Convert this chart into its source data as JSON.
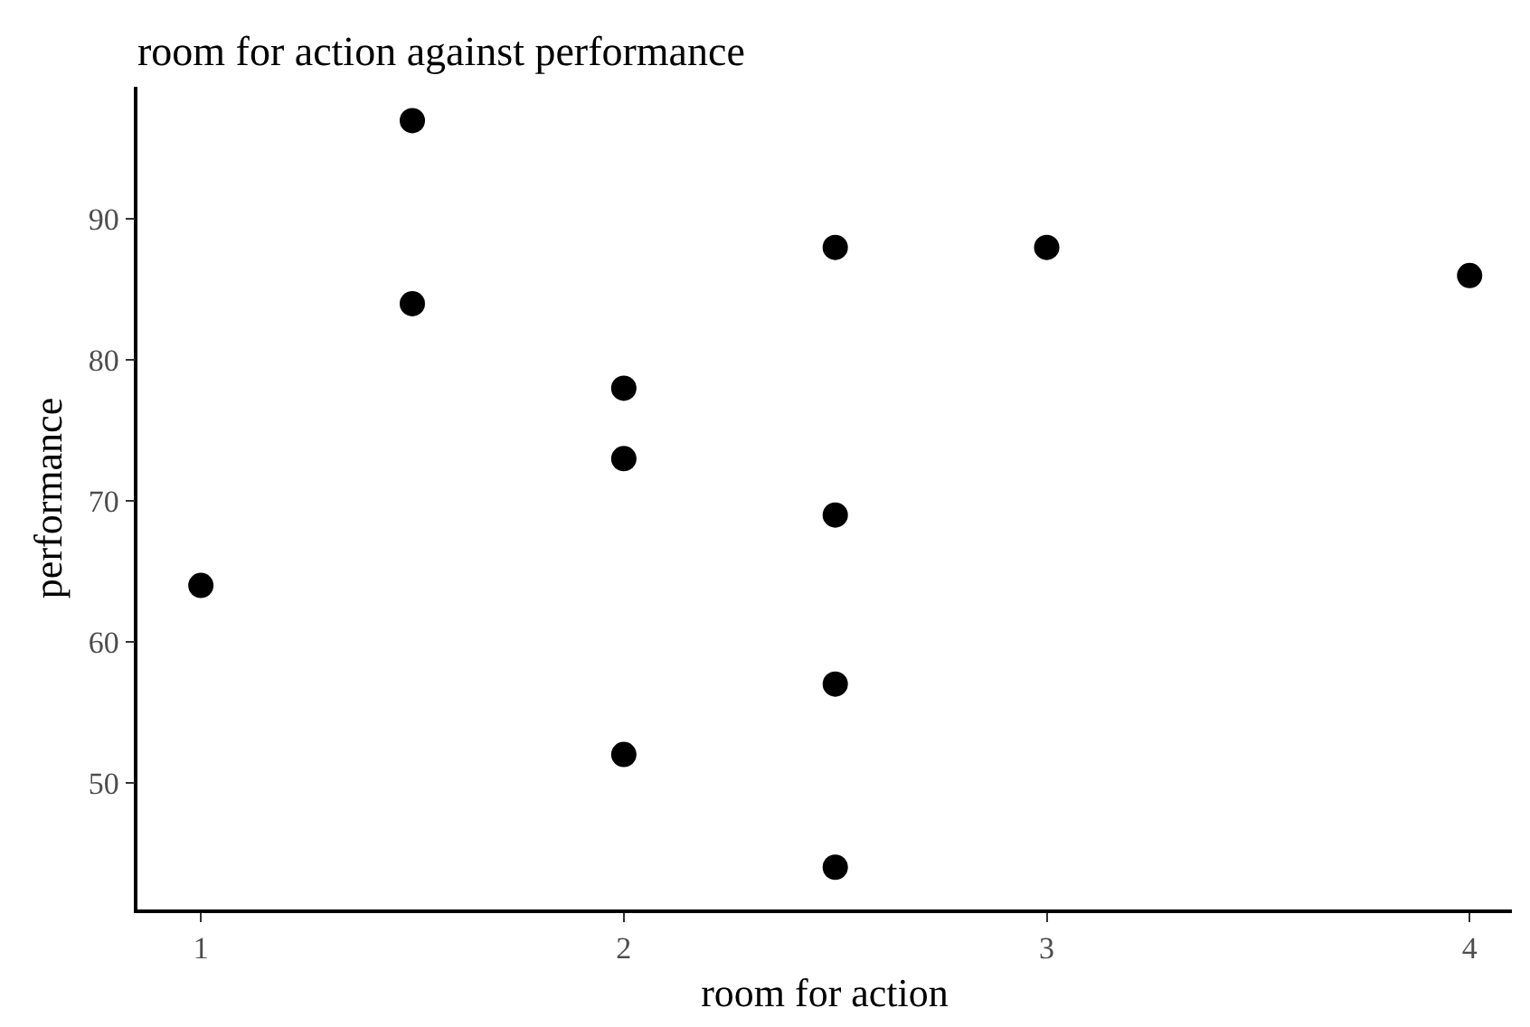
{
  "chart_data": {
    "type": "scatter",
    "title": "room for action against performance",
    "xlabel": "room for action",
    "ylabel": "performance",
    "x": [
      1,
      1.5,
      1.5,
      2,
      2,
      2,
      2.5,
      2.5,
      2.5,
      2.5,
      3,
      4
    ],
    "series": [
      {
        "color": "#000000",
        "values": [
          64,
          97,
          84,
          78,
          73,
          52,
          88,
          69,
          57,
          44,
          88,
          86
        ]
      }
    ],
    "xlim": [
      0.85,
      4.1
    ],
    "xticks": [
      1,
      2,
      3,
      4
    ],
    "ylim": [
      41,
      99.4
    ],
    "yticks": [
      50,
      60,
      70,
      80,
      90
    ],
    "marker": "circle"
  }
}
